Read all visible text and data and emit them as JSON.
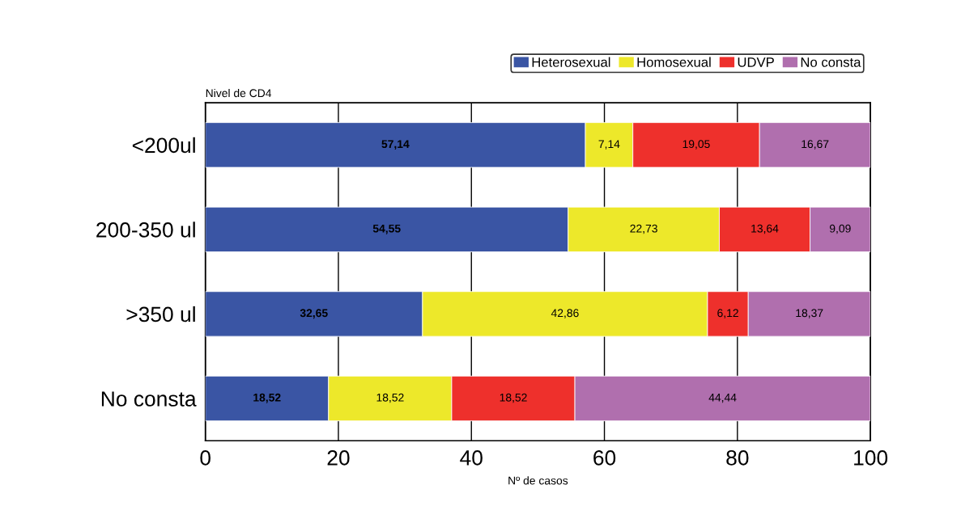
{
  "chart_data": {
    "type": "bar",
    "orientation": "horizontal",
    "stacked": true,
    "ylabel": "Nivel de CD4",
    "xlabel": "Nº de casos",
    "categories": [
      "<200ul",
      "200-350 ul",
      ">350 ul",
      "No consta"
    ],
    "series": [
      {
        "name": "Heterosexual",
        "color": "#3a55a4",
        "values": [
          57.14,
          54.55,
          32.65,
          18.52
        ],
        "value_labels": [
          "57,14",
          "54,55",
          "32,65",
          "18,52"
        ]
      },
      {
        "name": "Homosexual",
        "color": "#ede82a",
        "values": [
          7.14,
          22.73,
          42.86,
          18.52
        ],
        "value_labels": [
          "7,14",
          "22,73",
          "42,86",
          "18,52"
        ]
      },
      {
        "name": "UDVP",
        "color": "#ee302c",
        "values": [
          19.05,
          13.64,
          6.12,
          18.52
        ],
        "value_labels": [
          "19,05",
          "13,64",
          "6,12",
          "18,52"
        ]
      },
      {
        "name": "No consta",
        "color": "#b06fae",
        "values": [
          16.67,
          9.09,
          18.37,
          44.44
        ],
        "value_labels": [
          "16,67",
          "9,09",
          "18,37",
          "44,44"
        ]
      }
    ],
    "xlim": [
      0,
      100
    ],
    "xticks": [
      0,
      20,
      40,
      60,
      80,
      100
    ],
    "grid": "x",
    "legend": "top right"
  }
}
